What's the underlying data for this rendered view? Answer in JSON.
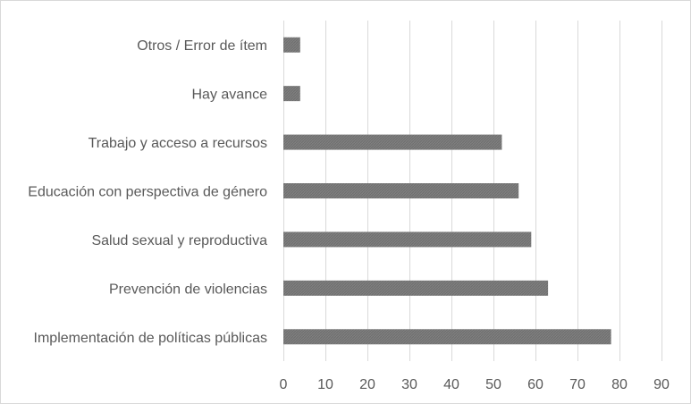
{
  "chart_data": {
    "type": "bar",
    "orientation": "horizontal",
    "title": "",
    "xlabel": "",
    "ylabel": "",
    "categories": [
      "Otros / Error de ítem",
      "Hay avance",
      "Trabajo y acceso a recursos",
      "Educación con perspectiva de género",
      "Salud sexual y reproductiva",
      "Prevención de violencias",
      "Implementación de políticas públicas"
    ],
    "values": [
      4,
      4,
      52,
      56,
      59,
      63,
      78
    ],
    "xlim": [
      0,
      90
    ],
    "xticks": [
      0,
      10,
      20,
      30,
      40,
      50,
      60,
      70,
      80,
      90
    ],
    "grid": "vertical",
    "legend": "none",
    "bar_color": "#7f7f7f",
    "grid_color": "#d9d9d9"
  }
}
